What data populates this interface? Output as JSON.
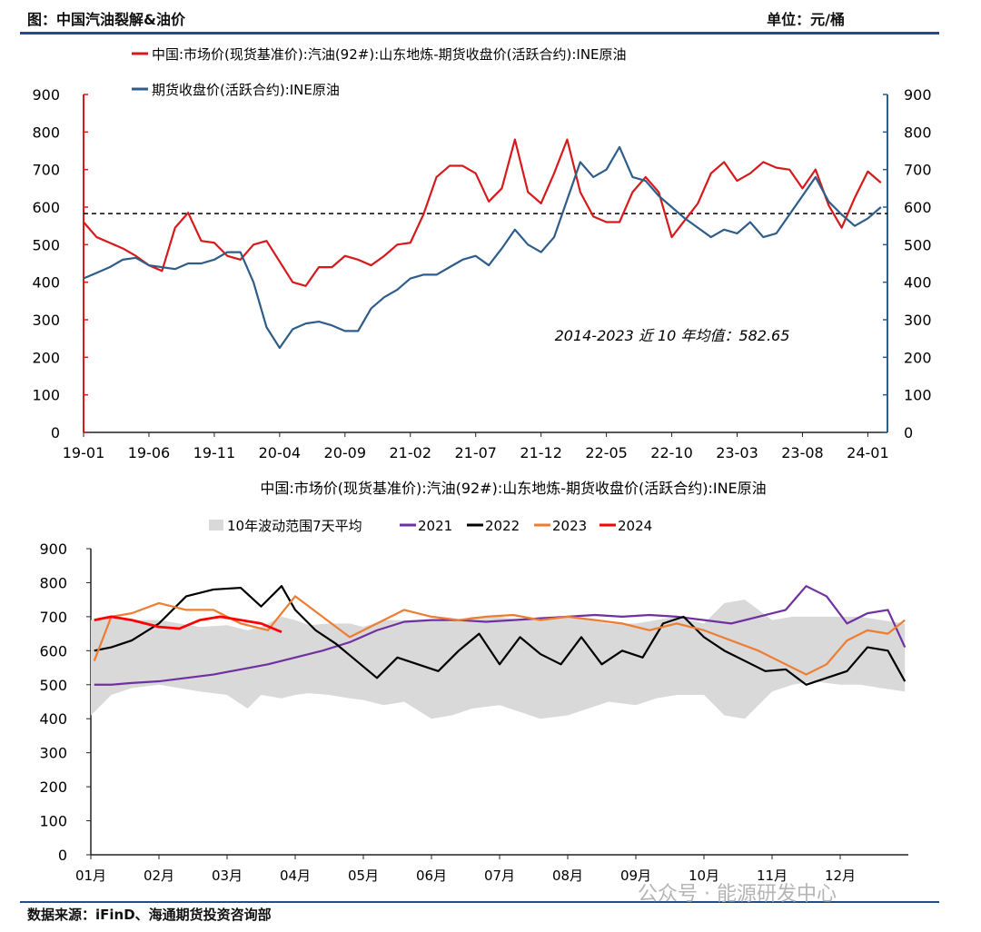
{
  "header": {
    "left": "图：中国汽油裂解&油价",
    "right": "单位：元/桶"
  },
  "footer": {
    "source": "数据来源：iFinD、海通期货投资咨询部",
    "watermark": "公众号 · 能源研发中心"
  },
  "chart_data": [
    {
      "type": "line",
      "legend": [
        "中国:市场价(现货基准价):汽油(92#):山东地炼-期货收盘价(活跃合约):INE原油",
        "期货收盘价(活跃合约):INE原油"
      ],
      "x_ticks": [
        "19-01",
        "19-06",
        "19-11",
        "20-04",
        "20-09",
        "21-02",
        "21-07",
        "21-12",
        "22-05",
        "22-10",
        "23-03",
        "23-08",
        "24-01"
      ],
      "y_ticks": [
        "0",
        "100",
        "200",
        "300",
        "400",
        "500",
        "600",
        "700",
        "800",
        "900"
      ],
      "ylim": [
        0,
        900
      ],
      "annotation": "2014-2023 近 10 年均值：582.65",
      "mean_value": 582.65,
      "series": [
        {
          "name": "中国:市场价(现货基准价):汽油(92#):山东地炼-期货收盘价(活跃合约):INE原油",
          "color": "#d7191c",
          "axis": "left",
          "x": [
            "2019-01",
            "2019-02",
            "2019-03",
            "2019-04",
            "2019-05",
            "2019-06",
            "2019-07",
            "2019-08",
            "2019-09",
            "2019-10",
            "2019-11",
            "2019-12",
            "2020-01",
            "2020-02",
            "2020-03",
            "2020-04",
            "2020-05",
            "2020-06",
            "2020-07",
            "2020-08",
            "2020-09",
            "2020-10",
            "2020-11",
            "2020-12",
            "2021-01",
            "2021-02",
            "2021-03",
            "2021-04",
            "2021-05",
            "2021-06",
            "2021-07",
            "2021-08",
            "2021-09",
            "2021-10",
            "2021-11",
            "2021-12",
            "2022-01",
            "2022-02",
            "2022-03",
            "2022-04",
            "2022-05",
            "2022-06",
            "2022-07",
            "2022-08",
            "2022-09",
            "2022-10",
            "2022-11",
            "2022-12",
            "2023-01",
            "2023-02",
            "2023-03",
            "2023-04",
            "2023-05",
            "2023-06",
            "2023-07",
            "2023-08",
            "2023-09",
            "2023-10",
            "2023-11",
            "2023-12",
            "2024-01",
            "2024-02"
          ],
          "values": [
            560,
            520,
            505,
            490,
            470,
            445,
            430,
            545,
            585,
            510,
            505,
            470,
            460,
            500,
            510,
            455,
            400,
            390,
            440,
            440,
            470,
            460,
            445,
            470,
            500,
            505,
            580,
            680,
            710,
            710,
            690,
            615,
            650,
            780,
            640,
            610,
            690,
            780,
            640,
            575,
            560,
            560,
            640,
            680,
            640,
            520,
            565,
            610,
            690,
            720,
            670,
            690,
            720,
            705,
            700,
            650,
            700,
            605,
            545,
            625,
            695,
            665
          ]
        },
        {
          "name": "期货收盘价(活跃合约):INE原油",
          "color": "#2f5d8a",
          "axis": "right",
          "x": [
            "2019-01",
            "2019-02",
            "2019-03",
            "2019-04",
            "2019-05",
            "2019-06",
            "2019-07",
            "2019-08",
            "2019-09",
            "2019-10",
            "2019-11",
            "2019-12",
            "2020-01",
            "2020-02",
            "2020-03",
            "2020-04",
            "2020-05",
            "2020-06",
            "2020-07",
            "2020-08",
            "2020-09",
            "2020-10",
            "2020-11",
            "2020-12",
            "2021-01",
            "2021-02",
            "2021-03",
            "2021-04",
            "2021-05",
            "2021-06",
            "2021-07",
            "2021-08",
            "2021-09",
            "2021-10",
            "2021-11",
            "2021-12",
            "2022-01",
            "2022-02",
            "2022-03",
            "2022-04",
            "2022-05",
            "2022-06",
            "2022-07",
            "2022-08",
            "2022-09",
            "2022-10",
            "2022-11",
            "2022-12",
            "2023-01",
            "2023-02",
            "2023-03",
            "2023-04",
            "2023-05",
            "2023-06",
            "2023-07",
            "2023-08",
            "2023-09",
            "2023-10",
            "2023-11",
            "2023-12",
            "2024-01",
            "2024-02"
          ],
          "values": [
            410,
            425,
            440,
            460,
            465,
            445,
            440,
            435,
            450,
            450,
            460,
            480,
            480,
            400,
            280,
            225,
            275,
            290,
            295,
            285,
            270,
            270,
            330,
            360,
            380,
            410,
            420,
            420,
            440,
            460,
            470,
            445,
            490,
            540,
            500,
            480,
            520,
            620,
            720,
            680,
            700,
            760,
            680,
            670,
            630,
            600,
            570,
            545,
            520,
            540,
            530,
            560,
            520,
            530,
            580,
            630,
            680,
            615,
            580,
            550,
            570,
            600
          ]
        }
      ]
    },
    {
      "type": "line",
      "title": "中国:市场价(现货基准价):汽油(92#):山东地炼-期货收盘价(活跃合约):INE原油",
      "legend": [
        "10年波动范围7天平均",
        "2021",
        "2022",
        "2023",
        "2024"
      ],
      "x_ticks": [
        "01月",
        "02月",
        "03月",
        "04月",
        "05月",
        "06月",
        "07月",
        "08月",
        "09月",
        "10月",
        "11月",
        "12月"
      ],
      "y_ticks": [
        "0",
        "100",
        "200",
        "300",
        "400",
        "500",
        "600",
        "700",
        "800",
        "900"
      ],
      "ylim": [
        0,
        900
      ],
      "band": {
        "name": "10年波动范围7天平均",
        "color": "#d9d9d9",
        "x": [
          0.0,
          0.3,
          0.6,
          1.0,
          1.3,
          1.6,
          2.0,
          2.3,
          2.5,
          2.8,
          3.0,
          3.2,
          3.5,
          3.8,
          4.0,
          4.3,
          4.6,
          5.0,
          5.3,
          5.6,
          6.0,
          6.3,
          6.6,
          7.0,
          7.3,
          7.6,
          8.0,
          8.3,
          8.6,
          9.0,
          9.3,
          9.6,
          10.0,
          10.3,
          10.6,
          11.0,
          11.3,
          11.6,
          11.95
        ],
        "low": [
          410,
          470,
          490,
          500,
          490,
          480,
          470,
          430,
          470,
          460,
          470,
          475,
          470,
          460,
          455,
          440,
          450,
          400,
          410,
          430,
          440,
          420,
          400,
          410,
          430,
          450,
          440,
          460,
          470,
          470,
          410,
          400,
          480,
          500,
          510,
          500,
          500,
          490,
          480
        ],
        "high": [
          690,
          700,
          690,
          690,
          680,
          670,
          675,
          660,
          670,
          700,
          690,
          675,
          680,
          680,
          670,
          690,
          690,
          690,
          685,
          700,
          700,
          690,
          700,
          700,
          690,
          680,
          680,
          690,
          700,
          680,
          740,
          750,
          690,
          700,
          700,
          700,
          700,
          690,
          680
        ]
      },
      "series": [
        {
          "name": "2021",
          "color": "#7030a0",
          "x": [
            0.05,
            0.3,
            0.6,
            1.0,
            1.4,
            1.8,
            2.2,
            2.6,
            3.0,
            3.4,
            3.8,
            4.2,
            4.6,
            5.0,
            5.4,
            5.8,
            6.2,
            6.6,
            7.0,
            7.4,
            7.8,
            8.2,
            8.6,
            9.0,
            9.4,
            9.8,
            10.2,
            10.5,
            10.8,
            11.1,
            11.4,
            11.7,
            11.95
          ],
          "values": [
            500,
            500,
            505,
            510,
            520,
            530,
            545,
            560,
            580,
            600,
            625,
            660,
            685,
            690,
            690,
            685,
            690,
            695,
            700,
            705,
            700,
            705,
            700,
            690,
            680,
            700,
            720,
            790,
            760,
            680,
            710,
            720,
            610
          ]
        },
        {
          "name": "2022",
          "color": "#000000",
          "x": [
            0.05,
            0.3,
            0.6,
            1.0,
            1.4,
            1.8,
            2.2,
            2.5,
            2.8,
            3.0,
            3.3,
            3.6,
            3.9,
            4.2,
            4.5,
            4.8,
            5.1,
            5.4,
            5.7,
            6.0,
            6.3,
            6.6,
            6.9,
            7.2,
            7.5,
            7.8,
            8.1,
            8.4,
            8.7,
            9.0,
            9.3,
            9.6,
            9.9,
            10.2,
            10.5,
            10.8,
            11.1,
            11.4,
            11.7,
            11.95
          ],
          "values": [
            600,
            610,
            630,
            680,
            760,
            780,
            785,
            730,
            790,
            720,
            660,
            620,
            570,
            520,
            580,
            560,
            540,
            600,
            650,
            560,
            640,
            590,
            560,
            640,
            560,
            600,
            580,
            680,
            700,
            640,
            600,
            570,
            540,
            545,
            500,
            520,
            540,
            610,
            600,
            510
          ]
        },
        {
          "name": "2023",
          "color": "#ed7d31",
          "x": [
            0.05,
            0.3,
            0.6,
            1.0,
            1.4,
            1.8,
            2.2,
            2.6,
            3.0,
            3.4,
            3.8,
            4.2,
            4.6,
            5.0,
            5.4,
            5.8,
            6.2,
            6.6,
            7.0,
            7.4,
            7.8,
            8.2,
            8.6,
            9.0,
            9.4,
            9.8,
            10.2,
            10.5,
            10.8,
            11.1,
            11.4,
            11.7,
            11.95
          ],
          "values": [
            570,
            700,
            710,
            740,
            720,
            720,
            680,
            660,
            760,
            700,
            640,
            680,
            720,
            700,
            690,
            700,
            705,
            690,
            700,
            690,
            680,
            660,
            680,
            660,
            630,
            600,
            560,
            530,
            560,
            630,
            660,
            650,
            690
          ]
        },
        {
          "name": "2024",
          "color": "#ff0000",
          "x": [
            0.05,
            0.3,
            0.6,
            1.0,
            1.3,
            1.6,
            1.9,
            2.2,
            2.5,
            2.8
          ],
          "values": [
            690,
            700,
            690,
            670,
            665,
            690,
            700,
            690,
            680,
            655
          ]
        }
      ]
    }
  ]
}
